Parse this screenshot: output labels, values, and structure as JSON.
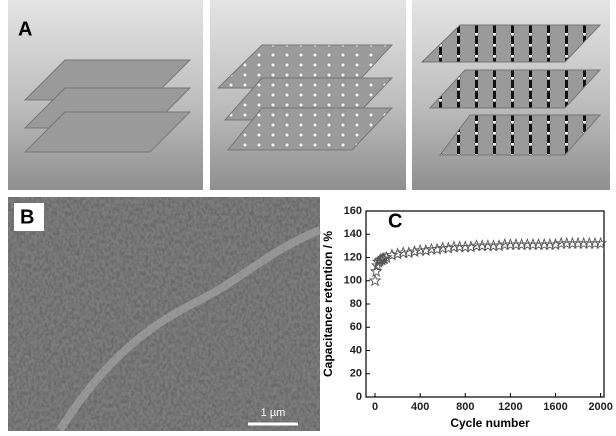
{
  "panels": {
    "a": {
      "label": "A"
    },
    "b": {
      "label": "B",
      "scale_bar": "1 µm"
    }
  },
  "chart_data": {
    "type": "scatter",
    "label": "C",
    "x_label": "Cycle number",
    "y_label": "Capacitance retention / %",
    "marker": "star",
    "color": "#555555",
    "x": [
      0,
      10,
      20,
      30,
      40,
      50,
      60,
      70,
      80,
      100,
      150,
      200,
      250,
      300,
      350,
      400,
      450,
      500,
      550,
      600,
      650,
      700,
      750,
      800,
      850,
      900,
      950,
      1000,
      1050,
      1100,
      1150,
      1200,
      1250,
      1300,
      1350,
      1400,
      1450,
      1500,
      1550,
      1600,
      1650,
      1700,
      1750,
      1800,
      1850,
      1900,
      1950,
      2000
    ],
    "values": [
      100,
      108,
      113,
      116,
      117,
      118,
      118,
      119,
      119,
      120,
      122,
      123,
      124,
      124,
      125,
      126,
      126,
      127,
      127,
      128,
      128,
      129,
      129,
      129,
      129,
      130,
      130,
      130,
      130,
      130,
      131,
      131,
      131,
      131,
      131,
      131,
      131,
      131,
      131,
      131,
      132,
      132,
      132,
      132,
      132,
      132,
      132,
      132
    ],
    "xlim": [
      -80,
      2030
    ],
    "ylim": [
      0,
      160
    ],
    "xticks": [
      0,
      400,
      800,
      1200,
      1600,
      2000
    ],
    "yticks": [
      0,
      20,
      40,
      60,
      80,
      100,
      120,
      140,
      160
    ]
  }
}
